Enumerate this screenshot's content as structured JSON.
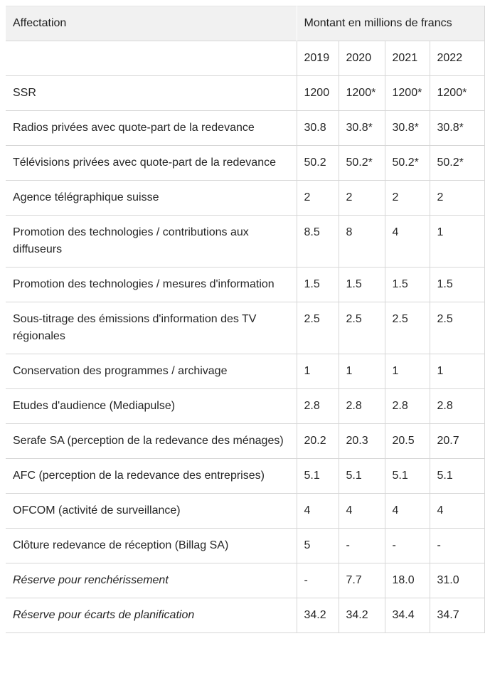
{
  "table": {
    "header": {
      "col1": "Affectation",
      "col2": "Montant en millions de francs",
      "years": [
        "2019",
        "2020",
        "2021",
        "2022"
      ]
    },
    "rows": [
      {
        "label": "SSR",
        "values": [
          "1200",
          "1200*",
          "1200*",
          "1200*"
        ],
        "italic": false
      },
      {
        "label": "Radios privées avec quote-part de la redevance",
        "values": [
          "30.8",
          "30.8*",
          "30.8*",
          "30.8*"
        ],
        "italic": false
      },
      {
        "label": "Télévisions privées avec quote-part de la redevance",
        "values": [
          "50.2",
          "50.2*",
          "50.2*",
          "50.2*"
        ],
        "italic": false
      },
      {
        "label": "Agence télégraphique suisse",
        "values": [
          "2",
          "2",
          "2",
          "2"
        ],
        "italic": false
      },
      {
        "label": "Promotion des technologies / contributions aux diffuseurs",
        "values": [
          "8.5",
          "8",
          "4",
          "1"
        ],
        "italic": false
      },
      {
        "label": "Promotion des technologies / mesures d'information",
        "values": [
          "1.5",
          "1.5",
          "1.5",
          "1.5"
        ],
        "italic": false
      },
      {
        "label": "Sous-titrage des émissions d'information des TV régionales",
        "values": [
          "2.5",
          "2.5",
          "2.5",
          "2.5"
        ],
        "italic": false
      },
      {
        "label": "Conservation des programmes / archivage",
        "values": [
          "1",
          "1",
          "1",
          "1"
        ],
        "italic": false
      },
      {
        "label": "Etudes d'audience (Mediapulse)",
        "values": [
          "2.8",
          "2.8",
          "2.8",
          "2.8"
        ],
        "italic": false
      },
      {
        "label": "Serafe SA (perception de la redevance des ménages)",
        "values": [
          "20.2",
          "20.3",
          "20.5",
          "20.7"
        ],
        "italic": false
      },
      {
        "label": "AFC (perception de la redevance des entreprises)",
        "values": [
          "5.1",
          "5.1",
          "5.1",
          "5.1"
        ],
        "italic": false
      },
      {
        "label": "OFCOM (activité de surveillance)",
        "values": [
          "4",
          "4",
          "4",
          "4"
        ],
        "italic": false
      },
      {
        "label": "Clôture redevance de réception (Billag SA)",
        "values": [
          "5",
          "-",
          "-",
          "-"
        ],
        "italic": false
      },
      {
        "label": "Réserve pour renchérissement",
        "values": [
          "-",
          "7.7",
          "18.0",
          "31.0"
        ],
        "italic": true
      },
      {
        "label": "Réserve pour écarts de planification",
        "values": [
          "34.2",
          "34.2",
          "34.4",
          "34.7"
        ],
        "italic": true
      }
    ]
  },
  "colors": {
    "header_background": "#f1f1f1",
    "border": "#d7d7d7",
    "text": "#262626"
  },
  "chart_data": {
    "type": "table",
    "title": "Montant en millions de francs",
    "columns": [
      "Affectation",
      "2019",
      "2020",
      "2021",
      "2022"
    ],
    "rows": [
      [
        "SSR",
        "1200",
        "1200*",
        "1200*",
        "1200*"
      ],
      [
        "Radios privées avec quote-part de la redevance",
        "30.8",
        "30.8*",
        "30.8*",
        "30.8*"
      ],
      [
        "Télévisions privées avec quote-part de la redevance",
        "50.2",
        "50.2*",
        "50.2*",
        "50.2*"
      ],
      [
        "Agence télégraphique suisse",
        "2",
        "2",
        "2",
        "2"
      ],
      [
        "Promotion des technologies / contributions aux diffuseurs",
        "8.5",
        "8",
        "4",
        "1"
      ],
      [
        "Promotion des technologies / mesures d'information",
        "1.5",
        "1.5",
        "1.5",
        "1.5"
      ],
      [
        "Sous-titrage des émissions d'information des TV régionales",
        "2.5",
        "2.5",
        "2.5",
        "2.5"
      ],
      [
        "Conservation des programmes / archivage",
        "1",
        "1",
        "1",
        "1"
      ],
      [
        "Etudes d'audience (Mediapulse)",
        "2.8",
        "2.8",
        "2.8",
        "2.8"
      ],
      [
        "Serafe SA (perception de la redevance des ménages)",
        "20.2",
        "20.3",
        "20.5",
        "20.7"
      ],
      [
        "AFC (perception de la redevance des entreprises)",
        "5.1",
        "5.1",
        "5.1",
        "5.1"
      ],
      [
        "OFCOM (activité de surveillance)",
        "4",
        "4",
        "4",
        "4"
      ],
      [
        "Clôture redevance de réception (Billag SA)",
        "5",
        "-",
        "-",
        "-"
      ],
      [
        "Réserve pour renchérissement",
        "-",
        "7.7",
        "18.0",
        "31.0"
      ],
      [
        "Réserve pour écarts de planification",
        "34.2",
        "34.2",
        "34.4",
        "34.7"
      ]
    ]
  }
}
